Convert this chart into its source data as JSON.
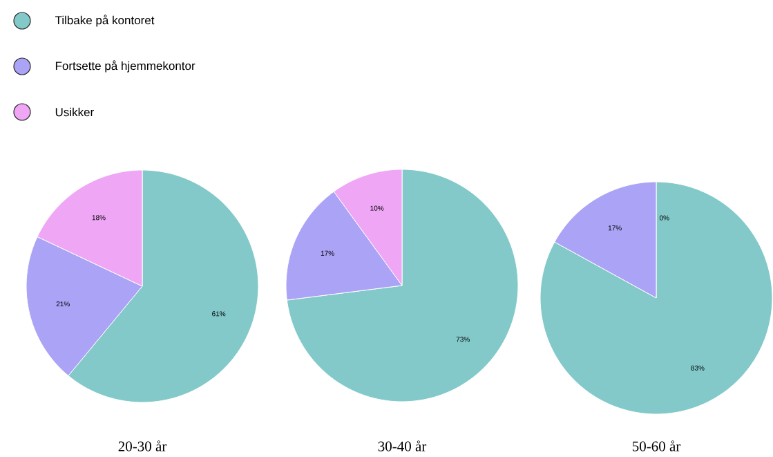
{
  "chart_data": [
    {
      "type": "pie",
      "title": "20-30 år",
      "legend": "top left",
      "categories": [
        "Tilbake på kontoret",
        "Fortsette på hjemmekontor",
        "Usikker"
      ],
      "values": [
        61,
        21,
        18
      ],
      "colors": [
        "#83c9c9",
        "#aba3f5",
        "#eea6f5"
      ],
      "value_labels": [
        "61%",
        "21%",
        "18%"
      ]
    },
    {
      "type": "pie",
      "title": "30-40 år",
      "categories": [
        null,
        null,
        null
      ],
      "values": [
        73,
        17,
        10
      ],
      "colors": [
        "#83c9c9",
        "#aba3f5",
        "#eea6f5"
      ],
      "value_labels": [
        "73%",
        "17%",
        "10%"
      ]
    },
    {
      "type": "pie",
      "title": "50-60 år",
      "categories": [
        null,
        null,
        null
      ],
      "values": [
        83,
        17,
        0
      ],
      "colors": [
        "#83c9c9",
        "#aba3f5",
        "#eea6f5"
      ],
      "value_labels": [
        "83%",
        "17%",
        "0%"
      ]
    }
  ]
}
